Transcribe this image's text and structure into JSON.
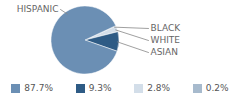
{
  "chart_data": {
    "type": "pie",
    "categories": [
      "HISPANIC",
      "ASIAN",
      "WHITE",
      "BLACK"
    ],
    "values": [
      87.7,
      9.3,
      2.8,
      0.2
    ],
    "value_labels": [
      "87.7%",
      "9.3%",
      "2.8%",
      "0.2%"
    ],
    "colors": [
      "#6b8fb4",
      "#2e5b85",
      "#d3dee9",
      "#a7bacd"
    ],
    "legend": "bottom"
  }
}
